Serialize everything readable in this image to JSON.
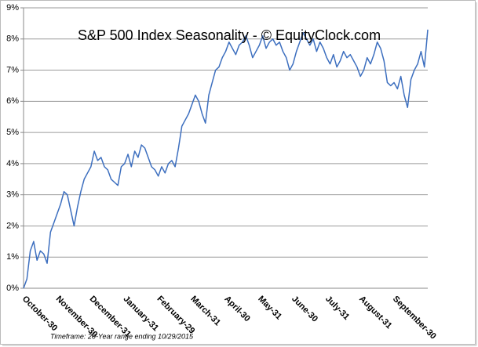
{
  "chart_data": {
    "type": "line",
    "title": "S&P 500 Index Seasonality - © EquityClock.com",
    "note": "Timeframe: 20-Year range ending 10/29/2015",
    "color": "#3d6fbf",
    "grid": true,
    "ylim": [
      0,
      9
    ],
    "yticks": [
      {
        "value": 0,
        "label": "0%"
      },
      {
        "value": 1,
        "label": "1%"
      },
      {
        "value": 2,
        "label": "2%"
      },
      {
        "value": 3,
        "label": "3%"
      },
      {
        "value": 4,
        "label": "4%"
      },
      {
        "value": 5,
        "label": "5%"
      },
      {
        "value": 6,
        "label": "6%"
      },
      {
        "value": 7,
        "label": "7%"
      },
      {
        "value": 8,
        "label": "8%"
      },
      {
        "value": 9,
        "label": "9%"
      }
    ],
    "categories": [
      "October-30",
      null,
      null,
      null,
      null,
      null,
      null,
      null,
      null,
      null,
      "November-30",
      null,
      null,
      null,
      null,
      null,
      null,
      null,
      null,
      null,
      "December-31",
      null,
      null,
      null,
      null,
      null,
      null,
      null,
      null,
      null,
      "January-31",
      null,
      null,
      null,
      null,
      null,
      null,
      null,
      null,
      null,
      "February-29",
      null,
      null,
      null,
      null,
      null,
      null,
      null,
      null,
      null,
      "March-31",
      null,
      null,
      null,
      null,
      null,
      null,
      null,
      null,
      null,
      "April-30",
      null,
      null,
      null,
      null,
      null,
      null,
      null,
      null,
      null,
      "May-31",
      null,
      null,
      null,
      null,
      null,
      null,
      null,
      null,
      null,
      "June-30",
      null,
      null,
      null,
      null,
      null,
      null,
      null,
      null,
      null,
      "July-31",
      null,
      null,
      null,
      null,
      null,
      null,
      null,
      null,
      null,
      "August-31",
      null,
      null,
      null,
      null,
      null,
      null,
      null,
      null,
      null,
      "September-30",
      null,
      null,
      null,
      null,
      null,
      null,
      null,
      null,
      null,
      null
    ],
    "values": [
      0.0,
      0.3,
      1.2,
      1.5,
      0.9,
      1.2,
      1.1,
      0.8,
      1.8,
      2.1,
      2.4,
      2.7,
      3.1,
      3.0,
      2.5,
      2.0,
      2.6,
      3.1,
      3.5,
      3.7,
      3.9,
      4.4,
      4.1,
      4.2,
      3.9,
      3.8,
      3.5,
      3.4,
      3.3,
      3.9,
      4.0,
      4.3,
      3.9,
      4.4,
      4.2,
      4.6,
      4.5,
      4.2,
      3.9,
      3.8,
      3.6,
      3.9,
      3.7,
      4.0,
      4.1,
      3.9,
      4.5,
      5.2,
      5.4,
      5.6,
      5.9,
      6.2,
      6.0,
      5.6,
      5.3,
      6.2,
      6.6,
      7.0,
      7.1,
      7.4,
      7.6,
      7.9,
      7.7,
      7.5,
      7.8,
      7.9,
      8.1,
      7.8,
      7.4,
      7.6,
      7.8,
      8.1,
      7.7,
      7.9,
      8.0,
      7.8,
      7.9,
      7.6,
      7.4,
      7.0,
      7.2,
      7.6,
      7.9,
      8.2,
      8.0,
      7.8,
      8.0,
      7.6,
      7.9,
      7.7,
      7.4,
      7.2,
      7.5,
      7.1,
      7.3,
      7.6,
      7.4,
      7.5,
      7.3,
      7.1,
      6.8,
      7.0,
      7.4,
      7.2,
      7.5,
      7.9,
      7.7,
      7.3,
      6.6,
      6.5,
      6.6,
      6.4,
      6.8,
      6.2,
      5.8,
      6.7,
      7.0,
      7.2,
      7.6,
      7.1,
      8.3
    ]
  }
}
